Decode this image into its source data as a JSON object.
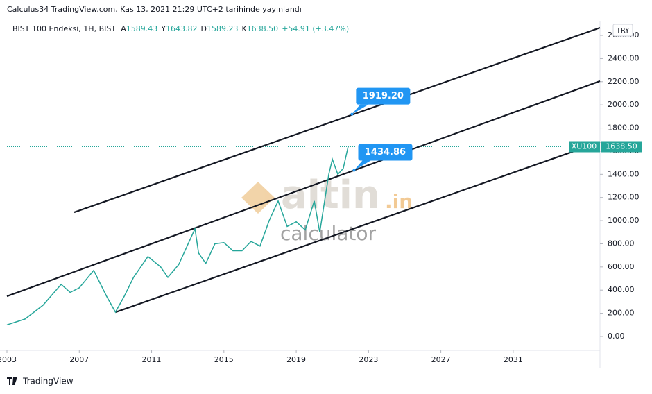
{
  "header": {
    "published": "Calculus34 TradingView.com, Kas 13, 2021 21:29 UTC+2 tarihinde yayınlandı",
    "symbol": "BIST 100 Endeksi, 1H, BIST",
    "ohlc": [
      {
        "key": "A",
        "value": "1589.43"
      },
      {
        "key": "Y",
        "value": "1643.82"
      },
      {
        "key": "D",
        "value": "1589.23"
      },
      {
        "key": "K",
        "value": "1638.50"
      }
    ],
    "change": "+54.91 (+3.47%)",
    "currency": "TRY"
  },
  "watermark": {
    "brand": "altin",
    "suffix": ".in",
    "sub": "calculator"
  },
  "footer": {
    "brand": "TradingView"
  },
  "chart_data": {
    "type": "line",
    "series": [
      {
        "name": "XU100",
        "color": "#26a69a",
        "x": [
          2003.0,
          2004.0,
          2005.0,
          2006.0,
          2006.5,
          2007.0,
          2007.8,
          2008.5,
          2009.0,
          2009.5,
          2010.0,
          2010.8,
          2011.5,
          2011.9,
          2012.5,
          2013.4,
          2013.6,
          2014.0,
          2014.5,
          2015.0,
          2015.5,
          2016.0,
          2016.5,
          2017.0,
          2017.5,
          2018.0,
          2018.5,
          2019.0,
          2019.5,
          2020.0,
          2020.3,
          2020.8,
          2021.0,
          2021.3,
          2021.6,
          2021.87
        ],
        "values": [
          100,
          150,
          270,
          450,
          380,
          420,
          570,
          350,
          210,
          350,
          510,
          690,
          600,
          510,
          620,
          930,
          720,
          630,
          800,
          810,
          740,
          740,
          820,
          780,
          1000,
          1170,
          950,
          990,
          920,
          1170,
          900,
          1400,
          1530,
          1400,
          1450,
          1638.5
        ]
      }
    ],
    "current": {
      "value": 1638.5,
      "label": "1638.50"
    },
    "trend_lines": [
      {
        "x": [
          2006.72,
          2035.8
        ],
        "y": [
          1072,
          2666
        ]
      },
      {
        "x": [
          2003.0,
          2035.8
        ],
        "y": [
          347,
          2205
        ]
      },
      {
        "x": [
          2009.02,
          2035.8
        ],
        "y": [
          210,
          1678
        ]
      }
    ],
    "callouts": [
      {
        "x": 2022.08,
        "value": 1919.2,
        "label": "1919.20"
      },
      {
        "x": 2022.2,
        "value": 1434.86,
        "label": "1434.86"
      }
    ],
    "xlim": [
      2003,
      2035.8
    ],
    "ylim": [
      -120,
      2726
    ],
    "xticks": [
      2003,
      2007,
      2011,
      2015,
      2019,
      2023,
      2027,
      2031
    ],
    "yticks": [
      {
        "value": 0,
        "label": "0.00"
      },
      {
        "value": 200,
        "label": "200.00"
      },
      {
        "value": 400,
        "label": "400.00"
      },
      {
        "value": 600,
        "label": "600.00"
      },
      {
        "value": 800,
        "label": "800.00"
      },
      {
        "value": 1000,
        "label": "1000.00"
      },
      {
        "value": 1200,
        "label": "1200.00"
      },
      {
        "value": 1400,
        "label": "1400.00"
      },
      {
        "value": 1600,
        "label": "1600.00"
      },
      {
        "value": 1800,
        "label": "1800.00"
      },
      {
        "value": 2000,
        "label": "2000.00"
      },
      {
        "value": 2200,
        "label": "2200.00"
      },
      {
        "value": 2400,
        "label": "2400.00"
      },
      {
        "value": 2600,
        "label": "2600.00"
      }
    ]
  }
}
